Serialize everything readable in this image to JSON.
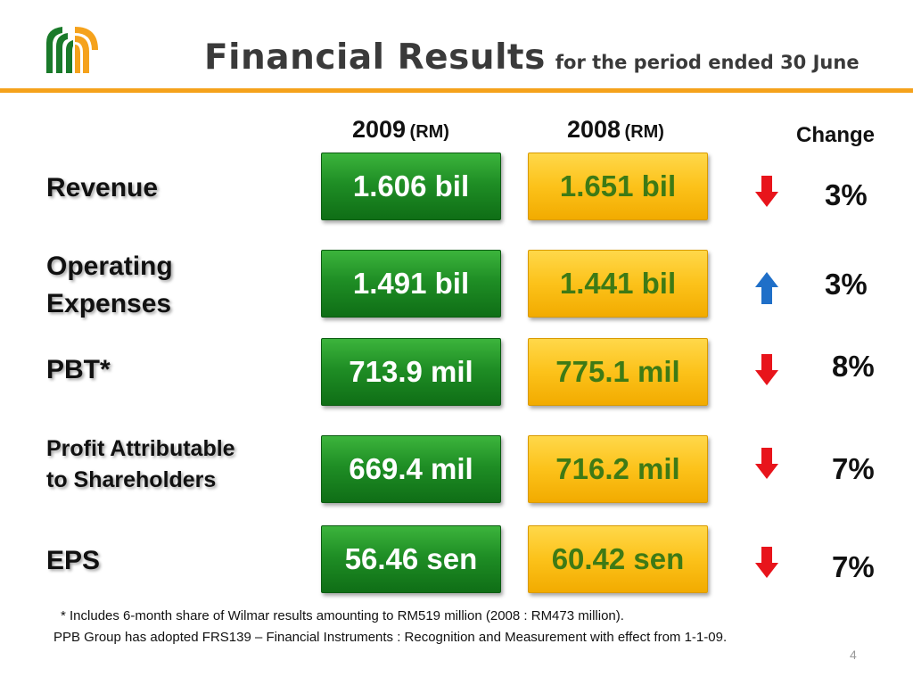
{
  "title": {
    "main": "Financial Results",
    "sub": "for the period ended 30 June"
  },
  "columns": {
    "y2009": {
      "year": "2009",
      "unit": "(RM)"
    },
    "y2008": {
      "year": "2008",
      "unit": "(RM)"
    },
    "change": "Change"
  },
  "rows": [
    {
      "label1": "Revenue",
      "label2": "",
      "v2009": "1.606 bil",
      "v2008": "1.651 bil",
      "direction": "down",
      "change": "3%"
    },
    {
      "label1": "Operating",
      "label2": "Expenses",
      "v2009": "1.491 bil",
      "v2008": "1.441 bil",
      "direction": "up",
      "change": "3%"
    },
    {
      "label1": "PBT*",
      "label2": "",
      "v2009": "713.9  mil",
      "v2008": "775.1 mil",
      "direction": "down",
      "change": "8%"
    },
    {
      "label1": "Profit Attributable",
      "label2": "to Shareholders",
      "v2009": "669.4 mil",
      "v2008": "716.2 mil",
      "direction": "down",
      "change": "7%"
    },
    {
      "label1": "EPS",
      "label2": "",
      "v2009": "56.46 sen",
      "v2008": "60.42 sen",
      "direction": "down",
      "change": "7%"
    }
  ],
  "footnotes": {
    "line1": "*  Includes 6-month share of Wilmar results amounting to RM519 million (2008 : RM473 million).",
    "line2": "PPB Group has adopted FRS139 – Financial Instruments : Recognition and Measurement with effect from 1-1-09."
  },
  "page_number": "4",
  "colors": {
    "accent": "#f5a21c",
    "green_box": "#1f8e25",
    "yellow_box": "#fcc21a",
    "arrow_down": "#e8141b",
    "arrow_up": "#1f6fc8"
  },
  "icons": {
    "logo": "ppb-logo",
    "down": "arrow-down-icon",
    "up": "arrow-up-icon"
  }
}
